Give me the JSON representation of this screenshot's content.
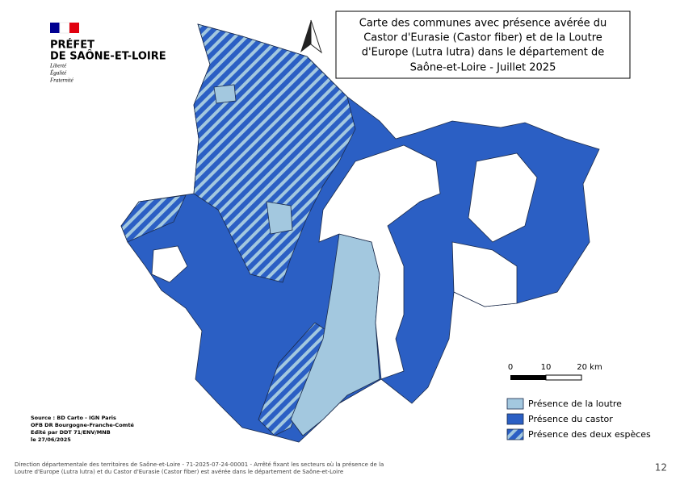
{
  "header": {
    "republique": [
      "PRÉFET",
      "DE SAÔNE-ET-LOIRE"
    ],
    "motto": [
      "Liberté",
      "Égalité",
      "Fraternité"
    ]
  },
  "title": [
    "Carte des communes avec présence avérée du",
    "Castor d'Eurasie (Castor fiber) et de la Loutre",
    "d'Europe (Lutra lutra) dans le département de",
    "Saône-et-Loire - Juillet 2025"
  ],
  "scale": {
    "labels": [
      "0",
      "10",
      "20 km"
    ]
  },
  "legend": [
    {
      "label": "Présence de la loutre",
      "color": "#a3c8df"
    },
    {
      "label": "Présence du castor",
      "color": "#2b5fc4"
    },
    {
      "label": "Présence des deux espèces",
      "color": "hatched"
    }
  ],
  "source": [
    "Source : BD Carto - IGN Paris",
    "OFB DR Bourgogne-Franche-Comté",
    "Edité par DDT 71/ENV/MNB",
    "le 27/06/2025"
  ],
  "footer": [
    "Direction départementale des territoires de Saône-et-Loire - 71-2025-07-24-00001 - Arrêté fixant les secteurs où la présence de la",
    "Loutre d'Europe (Lutra lutra) et du Castor d'Eurasie (Castor fiber) est avérée dans le département de Saône-et-Loire"
  ],
  "page_number": "12"
}
